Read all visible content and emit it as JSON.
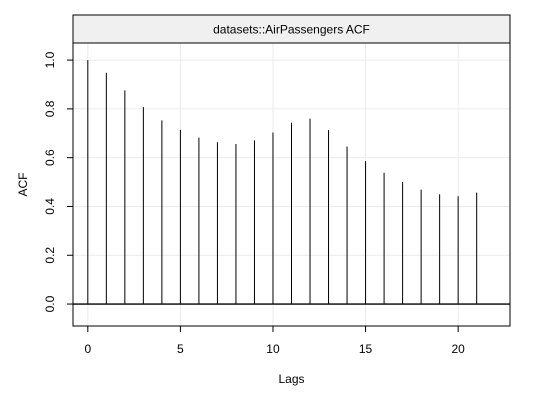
{
  "chart_data": {
    "type": "bar",
    "title": "datasets::AirPassengers ACF",
    "xlabel": "Lags",
    "ylabel": "ACF",
    "x": [
      0,
      1,
      2,
      3,
      4,
      5,
      6,
      7,
      8,
      9,
      10,
      11,
      12,
      13,
      14,
      15,
      16,
      17,
      18,
      19,
      20,
      21
    ],
    "values": [
      1.0,
      0.948,
      0.876,
      0.807,
      0.753,
      0.714,
      0.682,
      0.663,
      0.656,
      0.671,
      0.703,
      0.743,
      0.76,
      0.713,
      0.646,
      0.586,
      0.538,
      0.5,
      0.469,
      0.45,
      0.442,
      0.457
    ],
    "xlim": [
      -0.8,
      22.8
    ],
    "ylim": [
      -0.09,
      1.07
    ],
    "x_ticks": [
      0,
      5,
      10,
      15,
      20
    ],
    "x_tick_labels": [
      "0",
      "5",
      "10",
      "15",
      "20"
    ],
    "y_ticks": [
      0.0,
      0.2,
      0.4,
      0.6,
      0.8,
      1.0
    ],
    "y_tick_labels": [
      "0.0",
      "0.2",
      "0.4",
      "0.6",
      "0.8",
      "1.0"
    ],
    "grid": true,
    "zero_line": true,
    "colors": {
      "bars": "#000000",
      "grid": "#ebebeb",
      "strip_fill": "#f0f0f0",
      "frame": "#000000"
    }
  }
}
